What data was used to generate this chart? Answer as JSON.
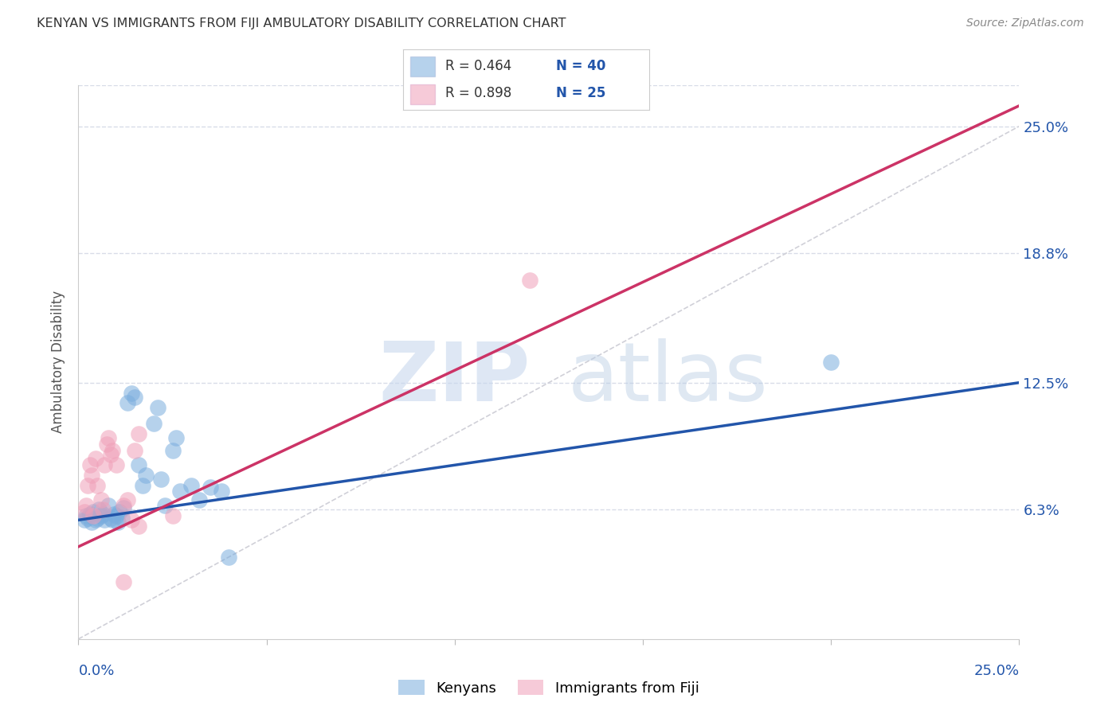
{
  "title": "KENYAN VS IMMIGRANTS FROM FIJI AMBULATORY DISABILITY CORRELATION CHART",
  "source": "Source: ZipAtlas.com",
  "ylabel": "Ambulatory Disability",
  "xlim": [
    0.0,
    25.0
  ],
  "ylim": [
    0.0,
    27.0
  ],
  "ytick_values": [
    6.3,
    12.5,
    18.8,
    25.0
  ],
  "watermark_zip": "ZIP",
  "watermark_atlas": "atlas",
  "dashed_line_color": "#d0d0d8",
  "blue_color": "#7aadde",
  "pink_color": "#f0a0b8",
  "blue_line_color": "#2255aa",
  "pink_line_color": "#cc3366",
  "blue_scatter": [
    [
      0.15,
      5.8
    ],
    [
      0.2,
      6.0
    ],
    [
      0.25,
      5.9
    ],
    [
      0.3,
      6.1
    ],
    [
      0.35,
      5.7
    ],
    [
      0.4,
      6.2
    ],
    [
      0.45,
      5.8
    ],
    [
      0.5,
      5.9
    ],
    [
      0.55,
      6.3
    ],
    [
      0.6,
      6.0
    ],
    [
      0.65,
      6.1
    ],
    [
      0.7,
      5.8
    ],
    [
      0.8,
      6.5
    ],
    [
      0.85,
      5.9
    ],
    [
      0.9,
      5.8
    ],
    [
      0.95,
      6.1
    ],
    [
      1.0,
      6.0
    ],
    [
      1.05,
      5.7
    ],
    [
      1.1,
      6.2
    ],
    [
      1.15,
      5.9
    ],
    [
      1.2,
      6.4
    ],
    [
      1.3,
      11.5
    ],
    [
      1.4,
      12.0
    ],
    [
      1.5,
      11.8
    ],
    [
      1.6,
      8.5
    ],
    [
      1.7,
      7.5
    ],
    [
      1.8,
      8.0
    ],
    [
      2.0,
      10.5
    ],
    [
      2.1,
      11.3
    ],
    [
      2.2,
      7.8
    ],
    [
      2.3,
      6.5
    ],
    [
      2.5,
      9.2
    ],
    [
      2.6,
      9.8
    ],
    [
      2.7,
      7.2
    ],
    [
      3.0,
      7.5
    ],
    [
      3.2,
      6.8
    ],
    [
      3.5,
      7.4
    ],
    [
      3.8,
      7.2
    ],
    [
      4.0,
      4.0
    ],
    [
      20.0,
      13.5
    ]
  ],
  "pink_scatter": [
    [
      0.15,
      6.2
    ],
    [
      0.2,
      6.5
    ],
    [
      0.25,
      7.5
    ],
    [
      0.3,
      8.5
    ],
    [
      0.35,
      8.0
    ],
    [
      0.4,
      6.0
    ],
    [
      0.45,
      8.8
    ],
    [
      0.5,
      7.5
    ],
    [
      0.6,
      6.8
    ],
    [
      0.65,
      6.3
    ],
    [
      0.7,
      8.5
    ],
    [
      0.75,
      9.5
    ],
    [
      0.8,
      9.8
    ],
    [
      0.85,
      9.0
    ],
    [
      0.9,
      9.2
    ],
    [
      1.0,
      8.5
    ],
    [
      1.5,
      9.2
    ],
    [
      1.6,
      10.0
    ],
    [
      2.5,
      6.0
    ],
    [
      1.2,
      6.5
    ],
    [
      1.3,
      6.8
    ],
    [
      1.4,
      5.8
    ],
    [
      1.6,
      5.5
    ],
    [
      12.0,
      17.5
    ],
    [
      1.2,
      2.8
    ]
  ],
  "blue_line_x": [
    0.0,
    25.0
  ],
  "blue_line_y": [
    5.8,
    12.5
  ],
  "pink_line_x": [
    0.0,
    25.0
  ],
  "pink_line_y": [
    4.5,
    26.0
  ],
  "dashed_line_x": [
    0.0,
    25.0
  ],
  "dashed_line_y": [
    0.0,
    25.0
  ],
  "background_color": "#ffffff",
  "grid_color": "#d8dce8",
  "legend_r1": "R = 0.464",
  "legend_n1": "N = 40",
  "legend_r2": "R = 0.898",
  "legend_n2": "N = 25",
  "legend_label1": "Kenyans",
  "legend_label2": "Immigrants from Fiji",
  "title_color": "#333333",
  "source_color": "#888888",
  "axis_label_color": "#2255aa",
  "ylabel_color": "#555555"
}
